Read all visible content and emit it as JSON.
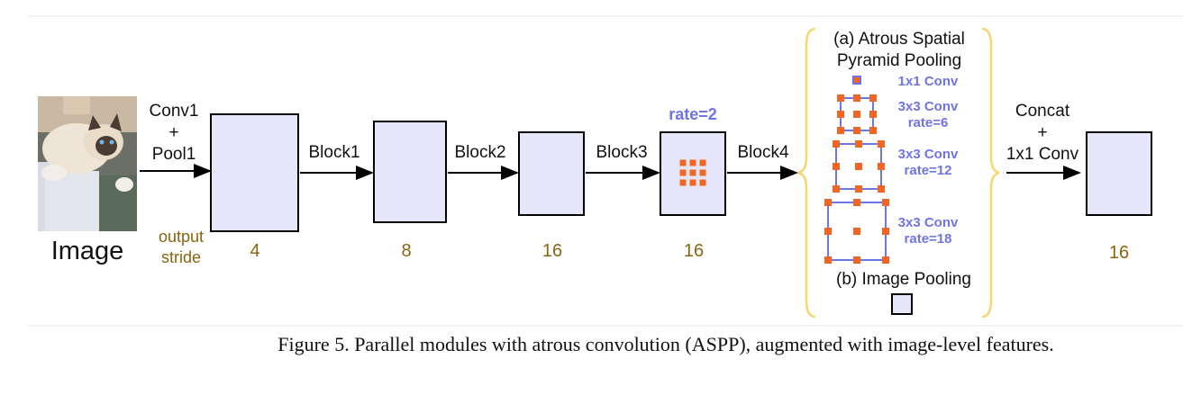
{
  "image_label": "Image",
  "stages": {
    "conv1_line1": "Conv1",
    "conv1_plus": "+",
    "conv1_line2": "Pool1",
    "block1": "Block1",
    "block2": "Block2",
    "block3": "Block3",
    "block4": "Block4",
    "concat_line1": "Concat",
    "concat_plus": "+",
    "concat_line2": "1x1 Conv"
  },
  "output_stride_label": [
    "output",
    "stride"
  ],
  "output_strides": [
    "4",
    "8",
    "16",
    "16",
    "16"
  ],
  "rate_label": "rate=2",
  "aspp": {
    "title_line1": "(a) Atrous Spatial",
    "title_line2": "Pyramid Pooling",
    "branches": [
      {
        "line1": "1x1 Conv",
        "line2": ""
      },
      {
        "line1": "3x3 Conv",
        "line2": "rate=6"
      },
      {
        "line1": "3x3 Conv",
        "line2": "rate=12"
      },
      {
        "line1": "3x3 Conv",
        "line2": "rate=18"
      }
    ],
    "image_pooling": "(b) Image Pooling"
  },
  "caption": "Figure 5. Parallel modules with atrous convolution (ASPP), augmented with image-level features.",
  "colors": {
    "box_fill": "#e6e6fa",
    "stride_text": "#8a6410",
    "aspp_blue": "#6f74e6",
    "dot_orange": "#f26522",
    "brace_yellow": "#f5d76e"
  }
}
